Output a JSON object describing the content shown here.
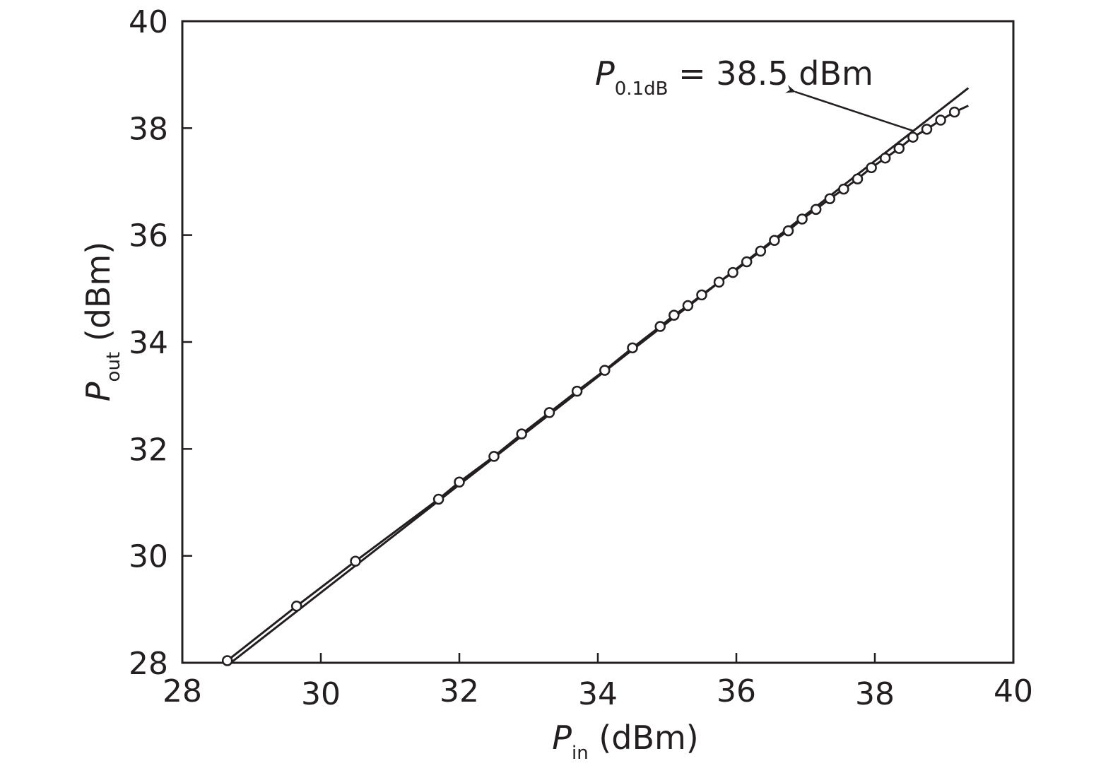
{
  "chart_data": {
    "type": "line",
    "title": "",
    "xlabel": {
      "main": "P",
      "subscript": "in",
      "unit": " (dBm)"
    },
    "ylabel": {
      "main": "P",
      "subscript": "out",
      "unit": " (dBm)"
    },
    "xlim": [
      28,
      40
    ],
    "ylim": [
      28,
      40
    ],
    "xticks": [
      "28",
      "30",
      "32",
      "34",
      "36",
      "38",
      "40"
    ],
    "yticks": [
      "28",
      "30",
      "32",
      "34",
      "36",
      "38",
      "40"
    ],
    "grid": false,
    "series": [
      {
        "style": "line",
        "x": [
          28.7,
          39.35
        ],
        "y": [
          28.0,
          38.75
        ]
      },
      {
        "style": "line-with-circles",
        "x": [
          28.65,
          29.65,
          30.5,
          31.7,
          32.0,
          32.5,
          32.9,
          33.3,
          33.7,
          34.1,
          34.5,
          34.9,
          35.1,
          35.3,
          35.5,
          35.75,
          35.95,
          36.15,
          36.35,
          36.55,
          36.75,
          36.95,
          37.15,
          37.35,
          37.55,
          37.75,
          37.95,
          38.15,
          38.35,
          38.55,
          38.75,
          38.95,
          39.15
        ],
        "y": [
          28.04,
          29.06,
          29.9,
          31.06,
          31.38,
          31.86,
          32.28,
          32.68,
          33.08,
          33.47,
          33.89,
          34.29,
          34.5,
          34.68,
          34.88,
          35.12,
          35.3,
          35.5,
          35.7,
          35.9,
          36.08,
          36.3,
          36.48,
          36.68,
          36.86,
          37.05,
          37.26,
          37.44,
          37.62,
          37.83,
          37.98,
          38.15,
          38.3
        ],
        "line_end": [
          39.35,
          38.42
        ]
      }
    ],
    "annotations": [
      {
        "main": "P",
        "subscript": "0.1dB",
        "text": " = 38.5 dBm",
        "arrow_from": [
          38.55,
          37.95
        ],
        "arrow_to": [
          36.85,
          38.68
        ]
      }
    ]
  }
}
